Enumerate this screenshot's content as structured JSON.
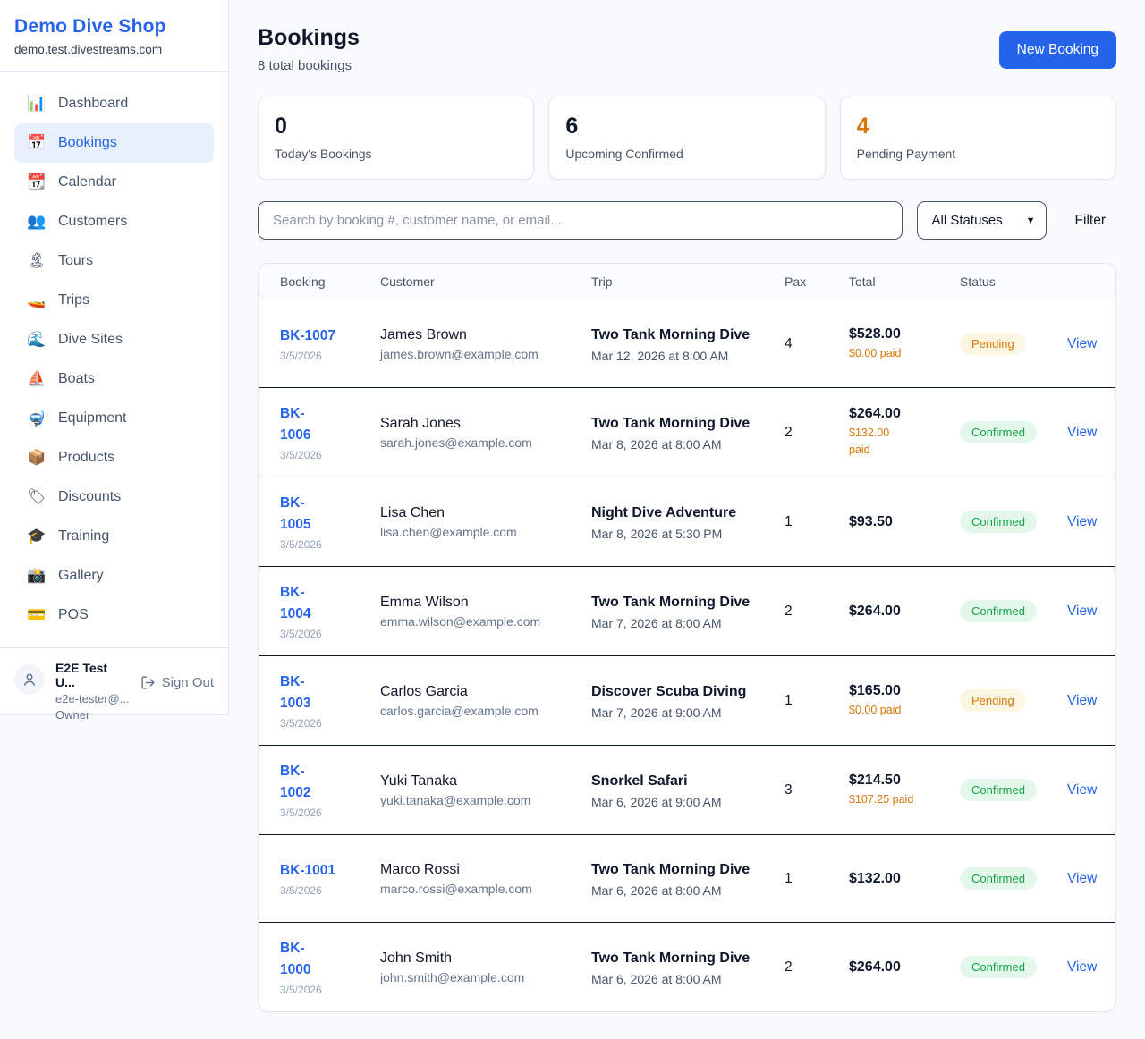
{
  "sidebar": {
    "brand": "Demo Dive Shop",
    "domain": "demo.test.divestreams.com",
    "items": [
      {
        "icon": "📊",
        "icon_name": "dashboard-icon",
        "label": "Dashboard",
        "active": false
      },
      {
        "icon": "📅",
        "icon_name": "bookings-icon",
        "label": "Bookings",
        "active": true
      },
      {
        "icon": "📆",
        "icon_name": "calendar-icon",
        "label": "Calendar",
        "active": false
      },
      {
        "icon": "👥",
        "icon_name": "customers-icon",
        "label": "Customers",
        "active": false
      },
      {
        "icon": "🏝",
        "icon_name": "tours-icon",
        "label": "Tours",
        "active": false
      },
      {
        "icon": "🚤",
        "icon_name": "trips-icon",
        "label": "Trips",
        "active": false
      },
      {
        "icon": "🌊",
        "icon_name": "dive-sites-icon",
        "label": "Dive Sites",
        "active": false
      },
      {
        "icon": "⛵",
        "icon_name": "boats-icon",
        "label": "Boats",
        "active": false
      },
      {
        "icon": "🤿",
        "icon_name": "equipment-icon",
        "label": "Equipment",
        "active": false
      },
      {
        "icon": "📦",
        "icon_name": "products-icon",
        "label": "Products",
        "active": false
      },
      {
        "icon": "🏷",
        "icon_name": "discounts-icon",
        "label": "Discounts",
        "active": false
      },
      {
        "icon": "🎓",
        "icon_name": "training-icon",
        "label": "Training",
        "active": false
      },
      {
        "icon": "📸",
        "icon_name": "gallery-icon",
        "label": "Gallery",
        "active": false
      },
      {
        "icon": "💳",
        "icon_name": "pos-icon",
        "label": "POS",
        "active": false
      }
    ],
    "user": {
      "name": "E2E Test U...",
      "email": "e2e-tester@...",
      "role": "Owner",
      "sign_out": "Sign Out"
    }
  },
  "header": {
    "title": "Bookings",
    "subtitle": "8 total bookings",
    "new_booking_label": "New Booking"
  },
  "stats": [
    {
      "value": "0",
      "label": "Today's Bookings",
      "accent": false
    },
    {
      "value": "6",
      "label": "Upcoming Confirmed",
      "accent": false
    },
    {
      "value": "4",
      "label": "Pending Payment",
      "accent": true
    }
  ],
  "filters": {
    "search_placeholder": "Search by booking #, customer name, or email...",
    "status_selected": "All Statuses",
    "filter_label": "Filter"
  },
  "table": {
    "columns": [
      "Booking",
      "Customer",
      "Trip",
      "Pax",
      "Total",
      "Status",
      ""
    ],
    "rows": [
      {
        "booking_id": "BK-1007",
        "id_two_line": false,
        "date": "3/5/2026",
        "customer": "James Brown",
        "email": "james.brown@example.com",
        "trip": "Two Tank Morning Dive",
        "trip_datetime": "Mar 12, 2026 at 8:00 AM",
        "pax": "4",
        "total": "$528.00",
        "paid": "$0.00 paid",
        "status": "Pending",
        "action": "View"
      },
      {
        "booking_id": "BK-1006",
        "id_two_line": true,
        "date": "3/5/2026",
        "customer": "Sarah Jones",
        "email": "sarah.jones@example.com",
        "trip": "Two Tank Morning Dive",
        "trip_datetime": "Mar 8, 2026 at 8:00 AM",
        "pax": "2",
        "total": "$264.00",
        "paid": "$132.00\npaid",
        "status": "Confirmed",
        "action": "View"
      },
      {
        "booking_id": "BK-1005",
        "id_two_line": true,
        "date": "3/5/2026",
        "customer": "Lisa Chen",
        "email": "lisa.chen@example.com",
        "trip": "Night Dive Adventure",
        "trip_datetime": "Mar 8, 2026 at 5:30 PM",
        "pax": "1",
        "total": "$93.50",
        "paid": "",
        "status": "Confirmed",
        "action": "View"
      },
      {
        "booking_id": "BK-1004",
        "id_two_line": true,
        "date": "3/5/2026",
        "customer": "Emma Wilson",
        "email": "emma.wilson@example.com",
        "trip": "Two Tank Morning Dive",
        "trip_datetime": "Mar 7, 2026 at 8:00 AM",
        "pax": "2",
        "total": "$264.00",
        "paid": "",
        "status": "Confirmed",
        "action": "View"
      },
      {
        "booking_id": "BK-1003",
        "id_two_line": true,
        "date": "3/5/2026",
        "customer": "Carlos Garcia",
        "email": "carlos.garcia@example.com",
        "trip": "Discover Scuba Diving",
        "trip_datetime": "Mar 7, 2026 at 9:00 AM",
        "pax": "1",
        "total": "$165.00",
        "paid": "$0.00 paid",
        "status": "Pending",
        "action": "View"
      },
      {
        "booking_id": "BK-1002",
        "id_two_line": true,
        "date": "3/5/2026",
        "customer": "Yuki Tanaka",
        "email": "yuki.tanaka@example.com",
        "trip": "Snorkel Safari",
        "trip_datetime": "Mar 6, 2026 at 9:00 AM",
        "pax": "3",
        "total": "$214.50",
        "paid": "$107.25 paid",
        "status": "Confirmed",
        "action": "View"
      },
      {
        "booking_id": "BK-1001",
        "id_two_line": false,
        "date": "3/5/2026",
        "customer": "Marco Rossi",
        "email": "marco.rossi@example.com",
        "trip": "Two Tank Morning Dive",
        "trip_datetime": "Mar 6, 2026 at 8:00 AM",
        "pax": "1",
        "total": "$132.00",
        "paid": "",
        "status": "Confirmed",
        "action": "View"
      },
      {
        "booking_id": "BK-1000",
        "id_two_line": true,
        "date": "3/5/2026",
        "customer": "John Smith",
        "email": "john.smith@example.com",
        "trip": "Two Tank Morning Dive",
        "trip_datetime": "Mar 6, 2026 at 8:00 AM",
        "pax": "2",
        "total": "$264.00",
        "paid": "",
        "status": "Confirmed",
        "action": "View"
      }
    ]
  },
  "colors": {
    "accent_blue": "#2563eb",
    "pending_text": "#d97706",
    "pending_bg": "#fdf6e3",
    "confirmed_text": "#16a34a",
    "confirmed_bg": "#e3f8ea",
    "page_bg": "#f8fafc",
    "divider_dark": "#0f172a"
  }
}
